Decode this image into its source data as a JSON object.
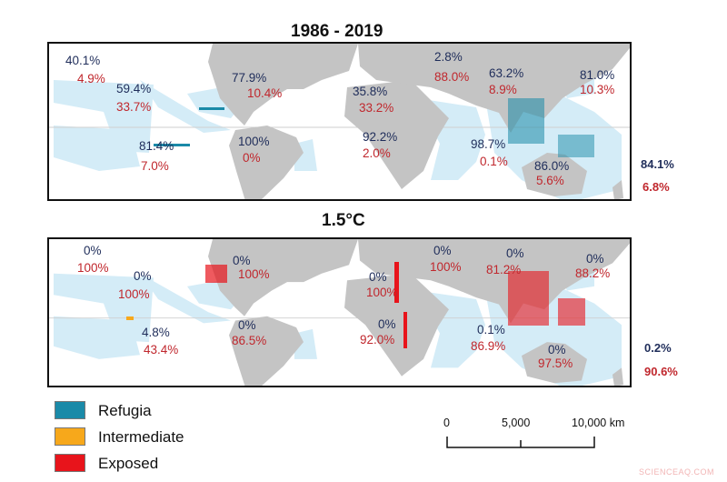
{
  "panels": [
    {
      "title": "1986 - 2019",
      "regions": [
        {
          "refugia": "40.1%",
          "exposed": "4.9%"
        },
        {
          "refugia": "59.4%",
          "exposed": "33.7%"
        },
        {
          "refugia": "77.9%",
          "exposed": "10.4%"
        },
        {
          "refugia": "81.4%",
          "exposed": "7.0%"
        },
        {
          "refugia": "100%",
          "exposed": "0%"
        },
        {
          "refugia": "35.8%",
          "exposed": "33.2%"
        },
        {
          "refugia": "92.2%",
          "exposed": "2.0%"
        },
        {
          "refugia": "2.8%",
          "exposed": "88.0%"
        },
        {
          "refugia": "63.2%",
          "exposed": "8.9%"
        },
        {
          "refugia": "81.0%",
          "exposed": "10.3%"
        },
        {
          "refugia": "98.7%",
          "exposed": "0.1%"
        },
        {
          "refugia": "86.0%",
          "exposed": "5.6%"
        }
      ],
      "total": {
        "refugia": "84.1%",
        "exposed": "6.8%"
      },
      "dominant_reef_color": "#1a8aa8"
    },
    {
      "title": "1.5°C",
      "regions": [
        {
          "refugia": "0%",
          "exposed": "100%"
        },
        {
          "refugia": "0%",
          "exposed": "100%"
        },
        {
          "refugia": "0%",
          "exposed": "100%"
        },
        {
          "refugia": "4.8%",
          "exposed": "43.4%"
        },
        {
          "refugia": "0%",
          "exposed": "86.5%"
        },
        {
          "refugia": "0%",
          "exposed": "100%"
        },
        {
          "refugia": "0%",
          "exposed": "100%"
        },
        {
          "refugia": "0%",
          "exposed": "81.2%"
        },
        {
          "refugia": "0%",
          "exposed": "88.2%"
        },
        {
          "refugia": "0%",
          "exposed": "92.0%"
        },
        {
          "refugia": "0.1%",
          "exposed": "86.9%"
        },
        {
          "refugia": "0%",
          "exposed": "97.5%"
        }
      ],
      "total": {
        "refugia": "0.2%",
        "exposed": "90.6%"
      },
      "dominant_reef_color": "#e8141b"
    }
  ],
  "legend": [
    {
      "label": "Refugia",
      "color": "#1a8aa8"
    },
    {
      "label": "Intermediate",
      "color": "#f7a81b"
    },
    {
      "label": "Exposed",
      "color": "#e8141b"
    }
  ],
  "scale_bar": {
    "ticks": [
      "0",
      "5,000",
      "10,000 km"
    ]
  },
  "colors": {
    "land": "#c4c4c4",
    "ocean_region": "#d4ecf7",
    "refugia_text": "#1f2d5a",
    "exposed_text": "#c0272d"
  },
  "watermark": "SCIENCEAQ.COM"
}
